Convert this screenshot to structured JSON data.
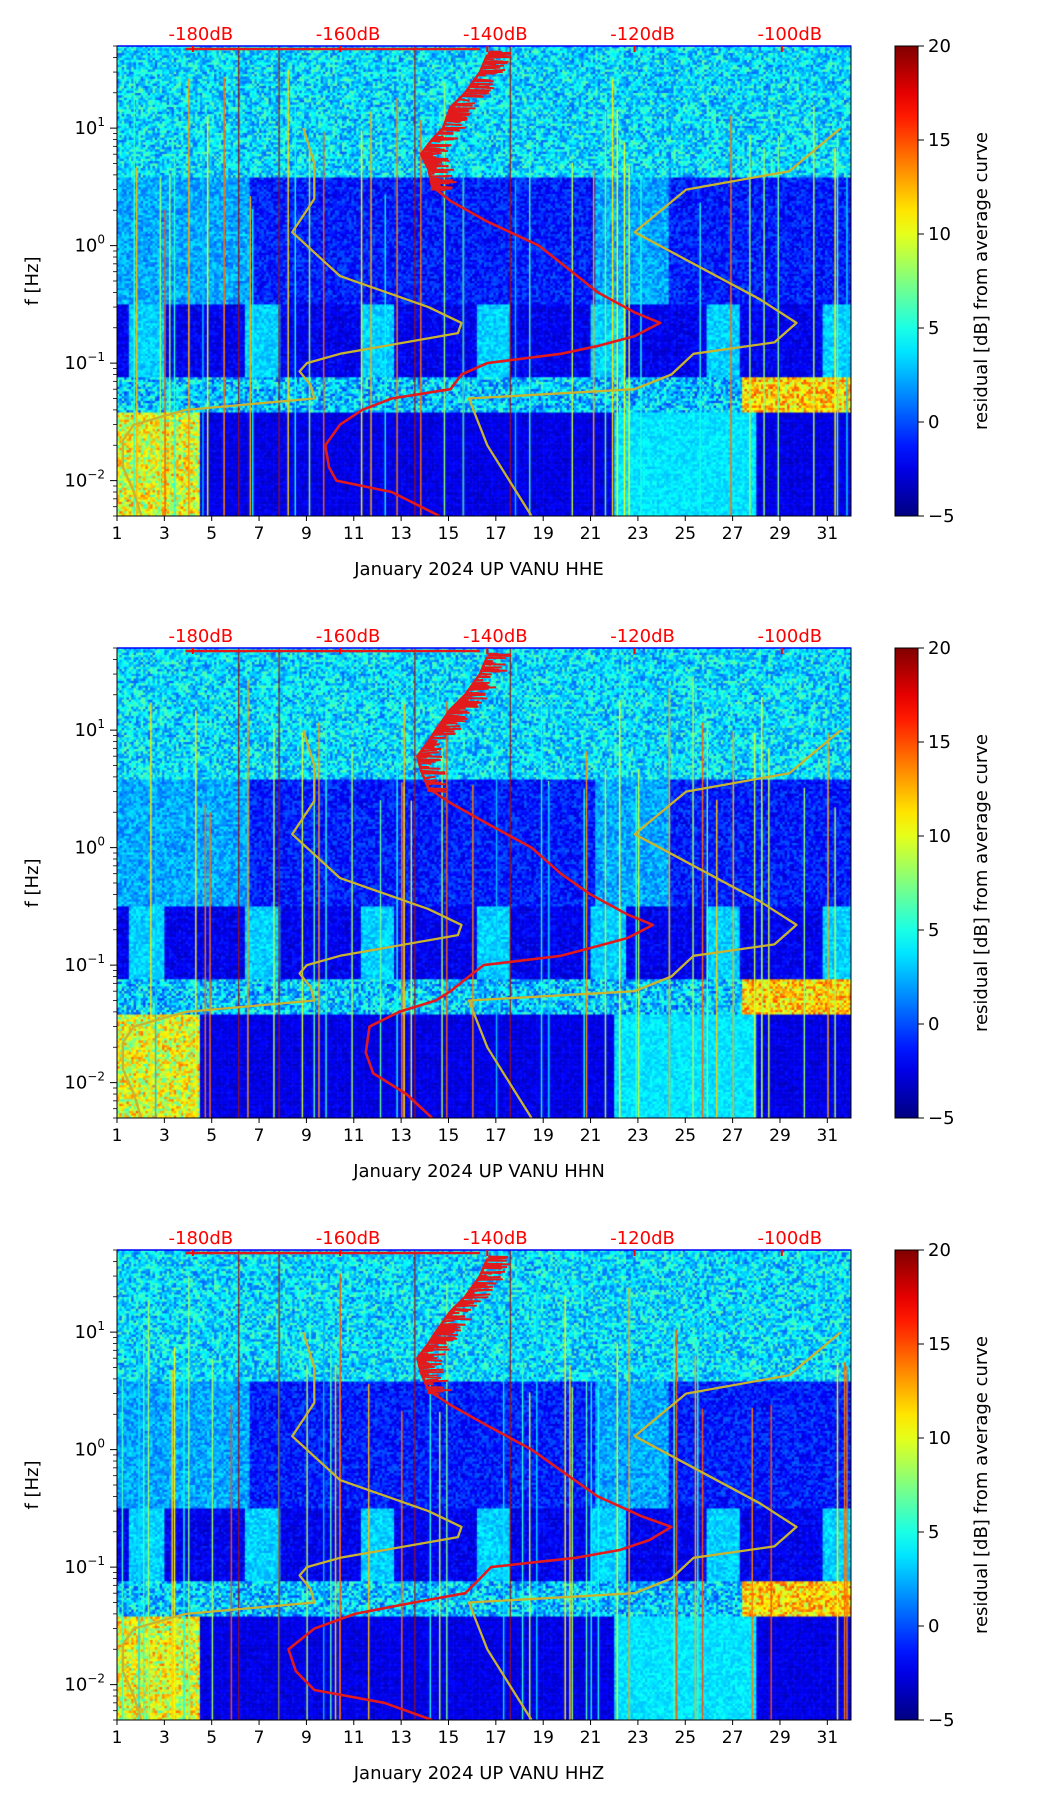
{
  "chart_data": [
    {
      "type": "heatmap",
      "title": "",
      "xlabel": "January 2024 UP VANU  HHE",
      "ylabel": "f [Hz]",
      "x_ticks": [
        1,
        3,
        5,
        7,
        9,
        11,
        13,
        15,
        17,
        19,
        21,
        23,
        25,
        27,
        29,
        31
      ],
      "x_range": [
        1,
        32
      ],
      "y_scale": "log",
      "y_range": [
        0.005,
        50
      ],
      "y_ticks": [
        {
          "value": 0.01,
          "base": "10",
          "exp": "−2"
        },
        {
          "value": 0.1,
          "base": "10",
          "exp": "−1"
        },
        {
          "value": 1,
          "base": "10",
          "exp": "0"
        },
        {
          "value": 10,
          "base": "10",
          "exp": "1"
        }
      ],
      "top_axis_labels": [
        "-180dB",
        "-160dB",
        "-140dB",
        "-120dB",
        "-100dB"
      ],
      "top_axis_values": [
        -180,
        -160,
        -140,
        -120,
        -100
      ],
      "top_axis_range": [
        -190.3,
        -90.6
      ],
      "colorbar": {
        "label": "residual [dB] from average curve",
        "range": [
          -5,
          20
        ],
        "ticks": [
          -5,
          0,
          5,
          10,
          15,
          20
        ],
        "tick_labels": [
          "−5",
          "0",
          "5",
          "10",
          "15",
          "20"
        ],
        "colormap": "jet"
      },
      "series": [
        {
          "name": "average curve",
          "color": "#e31a1c",
          "points": [
            [
              -146.5,
              0.005
            ],
            [
              -153,
              0.008
            ],
            [
              -160.5,
              0.01
            ],
            [
              -161.5,
              0.013
            ],
            [
              -162,
              0.02
            ],
            [
              -160,
              0.03
            ],
            [
              -157,
              0.04
            ],
            [
              -153,
              0.05
            ],
            [
              -145,
              0.06
            ],
            [
              -143.5,
              0.08
            ],
            [
              -140,
              0.1
            ],
            [
              -130,
              0.12
            ],
            [
              -125,
              0.14
            ],
            [
              -120,
              0.17
            ],
            [
              -116.5,
              0.22
            ],
            [
              -120,
              0.27
            ],
            [
              -125,
              0.4
            ],
            [
              -128.5,
              0.6
            ],
            [
              -133,
              1
            ],
            [
              -140,
              1.6
            ],
            [
              -145,
              2.4
            ],
            [
              -147.5,
              3.2
            ],
            [
              -148,
              4.5
            ],
            [
              -149,
              6
            ],
            [
              -147.5,
              8
            ],
            [
              -146,
              10
            ],
            [
              -145,
              15
            ],
            [
              -143,
              20
            ],
            [
              -141,
              30
            ],
            [
              -140,
              42
            ]
          ]
        },
        {
          "name": "noise model low",
          "color": "#c9b42f",
          "points": [
            [
              -187,
              0.005
            ],
            [
              -188,
              0.008
            ],
            [
              -189.5,
              0.013
            ],
            [
              -189.5,
              0.022
            ],
            [
              -188,
              0.03
            ],
            [
              -181,
              0.04
            ],
            [
              -163.5,
              0.05
            ],
            [
              -164,
              0.065
            ],
            [
              -165.5,
              0.085
            ],
            [
              -164.5,
              0.1
            ],
            [
              -160,
              0.12
            ],
            [
              -144,
              0.18
            ],
            [
              -143.5,
              0.22
            ],
            [
              -148,
              0.3
            ],
            [
              -160,
              0.55
            ],
            [
              -166.5,
              1.3
            ],
            [
              -163.5,
              2.5
            ],
            [
              -163.5,
              5
            ],
            [
              -165,
              10
            ]
          ]
        },
        {
          "name": "noise model high",
          "color": "#c9b42f",
          "points": [
            [
              -134,
              0.005
            ],
            [
              -140,
              0.02
            ],
            [
              -142.5,
              0.05
            ],
            [
              -120,
              0.06
            ],
            [
              -115,
              0.08
            ],
            [
              -112,
              0.12
            ],
            [
              -101,
              0.15
            ],
            [
              -98,
              0.22
            ],
            [
              -103,
              0.35
            ],
            [
              -120,
              1.3
            ],
            [
              -113,
              3.0
            ],
            [
              -99,
              4.3
            ],
            [
              -92,
              10
            ]
          ]
        }
      ]
    },
    {
      "type": "heatmap",
      "title": "",
      "xlabel": "January 2024 UP VANU  HHN",
      "ylabel": "f [Hz]",
      "x_ticks": [
        1,
        3,
        5,
        7,
        9,
        11,
        13,
        15,
        17,
        19,
        21,
        23,
        25,
        27,
        29,
        31
      ],
      "x_range": [
        1,
        32
      ],
      "y_scale": "log",
      "y_range": [
        0.005,
        50
      ],
      "y_ticks": [
        {
          "value": 0.01,
          "base": "10",
          "exp": "−2"
        },
        {
          "value": 0.1,
          "base": "10",
          "exp": "−1"
        },
        {
          "value": 1,
          "base": "10",
          "exp": "0"
        },
        {
          "value": 10,
          "base": "10",
          "exp": "1"
        }
      ],
      "top_axis_labels": [
        "-180dB",
        "-160dB",
        "-140dB",
        "-120dB",
        "-100dB"
      ],
      "top_axis_values": [
        -180,
        -160,
        -140,
        -120,
        -100
      ],
      "top_axis_range": [
        -190.3,
        -90.6
      ],
      "colorbar": {
        "label": "residual [dB] from average curve",
        "range": [
          -5,
          20
        ],
        "ticks": [
          -5,
          0,
          5,
          10,
          15,
          20
        ],
        "tick_labels": [
          "−5",
          "0",
          "5",
          "10",
          "15",
          "20"
        ],
        "colormap": "jet"
      },
      "series": [
        {
          "name": "average curve",
          "color": "#e31a1c",
          "points": [
            [
              -147.5,
              0.005
            ],
            [
              -151,
              0.008
            ],
            [
              -155.5,
              0.012
            ],
            [
              -156.5,
              0.018
            ],
            [
              -156,
              0.03
            ],
            [
              -152,
              0.04
            ],
            [
              -147,
              0.05
            ],
            [
              -145,
              0.06
            ],
            [
              -142.5,
              0.08
            ],
            [
              -140.5,
              0.1
            ],
            [
              -130,
              0.12
            ],
            [
              -126,
              0.14
            ],
            [
              -121,
              0.17
            ],
            [
              -117.5,
              0.22
            ],
            [
              -121,
              0.27
            ],
            [
              -126,
              0.4
            ],
            [
              -130,
              0.6
            ],
            [
              -134,
              1
            ],
            [
              -140,
              1.6
            ],
            [
              -145,
              2.4
            ],
            [
              -148,
              3.2
            ],
            [
              -149,
              4.5
            ],
            [
              -149.5,
              6
            ],
            [
              -148,
              8
            ],
            [
              -147,
              10
            ],
            [
              -145,
              15
            ],
            [
              -143,
              20
            ],
            [
              -141,
              30
            ],
            [
              -140,
              42
            ]
          ]
        },
        {
          "name": "noise model low",
          "color": "#c9b42f",
          "points": [
            [
              -187,
              0.005
            ],
            [
              -188,
              0.008
            ],
            [
              -189.5,
              0.013
            ],
            [
              -189.5,
              0.022
            ],
            [
              -188,
              0.03
            ],
            [
              -181,
              0.04
            ],
            [
              -163.5,
              0.05
            ],
            [
              -164,
              0.065
            ],
            [
              -165.5,
              0.085
            ],
            [
              -164.5,
              0.1
            ],
            [
              -160,
              0.12
            ],
            [
              -144,
              0.18
            ],
            [
              -143.5,
              0.22
            ],
            [
              -148,
              0.3
            ],
            [
              -160,
              0.55
            ],
            [
              -166.5,
              1.3
            ],
            [
              -163.5,
              2.5
            ],
            [
              -163.5,
              5
            ],
            [
              -165,
              10
            ]
          ]
        },
        {
          "name": "noise model high",
          "color": "#c9b42f",
          "points": [
            [
              -134,
              0.005
            ],
            [
              -140,
              0.02
            ],
            [
              -142.5,
              0.05
            ],
            [
              -120,
              0.06
            ],
            [
              -115,
              0.08
            ],
            [
              -112,
              0.12
            ],
            [
              -101,
              0.15
            ],
            [
              -98,
              0.22
            ],
            [
              -103,
              0.35
            ],
            [
              -120,
              1.3
            ],
            [
              -113,
              3.0
            ],
            [
              -99,
              4.3
            ],
            [
              -92,
              10
            ]
          ]
        }
      ]
    },
    {
      "type": "heatmap",
      "title": "",
      "xlabel": "January 2024 UP VANU  HHZ",
      "ylabel": "f [Hz]",
      "x_ticks": [
        1,
        3,
        5,
        7,
        9,
        11,
        13,
        15,
        17,
        19,
        21,
        23,
        25,
        27,
        29,
        31
      ],
      "x_range": [
        1,
        32
      ],
      "y_scale": "log",
      "y_range": [
        0.005,
        50
      ],
      "y_ticks": [
        {
          "value": 0.01,
          "base": "10",
          "exp": "−2"
        },
        {
          "value": 0.1,
          "base": "10",
          "exp": "−1"
        },
        {
          "value": 1,
          "base": "10",
          "exp": "0"
        },
        {
          "value": 10,
          "base": "10",
          "exp": "1"
        }
      ],
      "top_axis_labels": [
        "-180dB",
        "-160dB",
        "-140dB",
        "-120dB",
        "-100dB"
      ],
      "top_axis_values": [
        -180,
        -160,
        -140,
        -120,
        -100
      ],
      "top_axis_range": [
        -190.3,
        -90.6
      ],
      "colorbar": {
        "label": "residual [dB] from average curve",
        "range": [
          -5,
          20
        ],
        "ticks": [
          -5,
          0,
          5,
          10,
          15,
          20
        ],
        "tick_labels": [
          "−5",
          "0",
          "5",
          "10",
          "15",
          "20"
        ],
        "colormap": "jet"
      },
      "series": [
        {
          "name": "average curve",
          "color": "#e31a1c",
          "points": [
            [
              -147.5,
              0.005
            ],
            [
              -154,
              0.007
            ],
            [
              -163.5,
              0.009
            ],
            [
              -166,
              0.013
            ],
            [
              -167,
              0.02
            ],
            [
              -163.5,
              0.03
            ],
            [
              -158,
              0.04
            ],
            [
              -150,
              0.05
            ],
            [
              -143,
              0.06
            ],
            [
              -141,
              0.08
            ],
            [
              -139.5,
              0.1
            ],
            [
              -128,
              0.12
            ],
            [
              -122,
              0.14
            ],
            [
              -118,
              0.17
            ],
            [
              -115,
              0.22
            ],
            [
              -119,
              0.27
            ],
            [
              -125,
              0.4
            ],
            [
              -129,
              0.6
            ],
            [
              -134,
              1
            ],
            [
              -140,
              1.6
            ],
            [
              -145,
              2.4
            ],
            [
              -148,
              3.2
            ],
            [
              -149,
              4.5
            ],
            [
              -149.5,
              6
            ],
            [
              -148,
              8
            ],
            [
              -147,
              10
            ],
            [
              -145,
              15
            ],
            [
              -143,
              20
            ],
            [
              -141,
              30
            ],
            [
              -140,
              42
            ]
          ]
        },
        {
          "name": "noise model low",
          "color": "#c9b42f",
          "points": [
            [
              -187,
              0.005
            ],
            [
              -188,
              0.008
            ],
            [
              -189.5,
              0.013
            ],
            [
              -189.5,
              0.022
            ],
            [
              -188,
              0.03
            ],
            [
              -181,
              0.04
            ],
            [
              -163.5,
              0.05
            ],
            [
              -164,
              0.065
            ],
            [
              -165.5,
              0.085
            ],
            [
              -164.5,
              0.1
            ],
            [
              -160,
              0.12
            ],
            [
              -144,
              0.18
            ],
            [
              -143.5,
              0.22
            ],
            [
              -148,
              0.3
            ],
            [
              -160,
              0.55
            ],
            [
              -166.5,
              1.3
            ],
            [
              -163.5,
              2.5
            ],
            [
              -163.5,
              5
            ],
            [
              -165,
              10
            ]
          ]
        },
        {
          "name": "noise model high",
          "color": "#c9b42f",
          "points": [
            [
              -134,
              0.005
            ],
            [
              -140,
              0.02
            ],
            [
              -142.5,
              0.05
            ],
            [
              -120,
              0.06
            ],
            [
              -115,
              0.08
            ],
            [
              -112,
              0.12
            ],
            [
              -101,
              0.15
            ],
            [
              -98,
              0.22
            ],
            [
              -103,
              0.35
            ],
            [
              -120,
              1.3
            ],
            [
              -113,
              3.0
            ],
            [
              -99,
              4.3
            ],
            [
              -92,
              10
            ]
          ]
        }
      ]
    }
  ]
}
